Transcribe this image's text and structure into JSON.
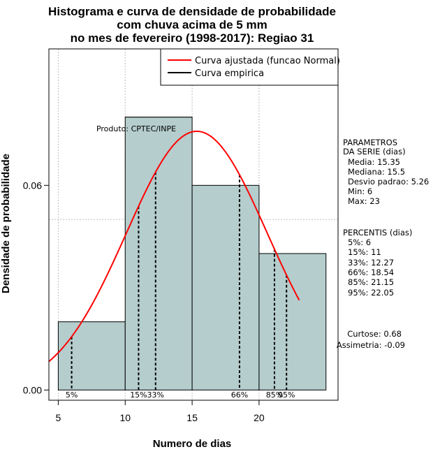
{
  "chart_data": {
    "type": "bar",
    "title_lines": [
      "Histograma e curva de densidade de probabilidade",
      "com chuva acima de 5 mm",
      "no mes de fevereiro (1998-2017): Regiao 31"
    ],
    "xlabel": "Numero de dias",
    "ylabel": "Densidade de probabilidade",
    "xlim": [
      4.3,
      25.9
    ],
    "ylim": [
      -0.003,
      0.1
    ],
    "x_ticks": [
      5,
      10,
      15,
      20
    ],
    "x_tick_labels": [
      "5",
      "10",
      "15",
      "20"
    ],
    "y_ticks": [
      0,
      0.06
    ],
    "y_tick_labels": [
      "0.00",
      "0.06"
    ],
    "grid_x": [
      5,
      10,
      15,
      20
    ],
    "grid_y": [
      0.05,
      0.1
    ],
    "bins": [
      {
        "start": 5,
        "end": 10,
        "density": 0.02
      },
      {
        "start": 10,
        "end": 15,
        "density": 0.08
      },
      {
        "start": 15,
        "end": 20,
        "density": 0.06
      },
      {
        "start": 20,
        "end": 25,
        "density": 0.04
      }
    ],
    "normal_curve": {
      "mean": 15.35,
      "sd": 5.26,
      "x_from": 4.3,
      "x_to": 23
    },
    "percentile_lines": [
      {
        "label": "5%",
        "value": 6
      },
      {
        "label": "15%",
        "value": 11
      },
      {
        "label": "33%",
        "value": 12.27
      },
      {
        "label": "66%",
        "value": 18.54
      },
      {
        "label": "85%",
        "value": 21.15
      },
      {
        "label": "95%",
        "value": 22.05
      }
    ],
    "legend": [
      {
        "label": "Curva ajustada (funcao Normal)",
        "color": "#ff0000"
      },
      {
        "label": "Curva empirica",
        "color": "#000000"
      }
    ],
    "legend_position": "top-right",
    "annotation": "Produto: CPTEC/INPE",
    "bar_color": "#b5cdcd"
  },
  "side_panel": {
    "parametros": [
      "PARAMETROS",
      "DA SERIE (dias)",
      "Media: 15.35",
      "Mediana: 15.5",
      "Desvio padrao: 5.26",
      "Min: 6",
      "Max: 23"
    ],
    "percentis": [
      "PERCENTIS (dias)",
      "5%: 6",
      "15%: 11",
      "33%: 12.27",
      "66%: 18.54",
      "85%: 21.15",
      "95%: 22.05"
    ],
    "curtose": "Curtose: 0.68",
    "assimetria": "Assimetria: -0.09"
  }
}
